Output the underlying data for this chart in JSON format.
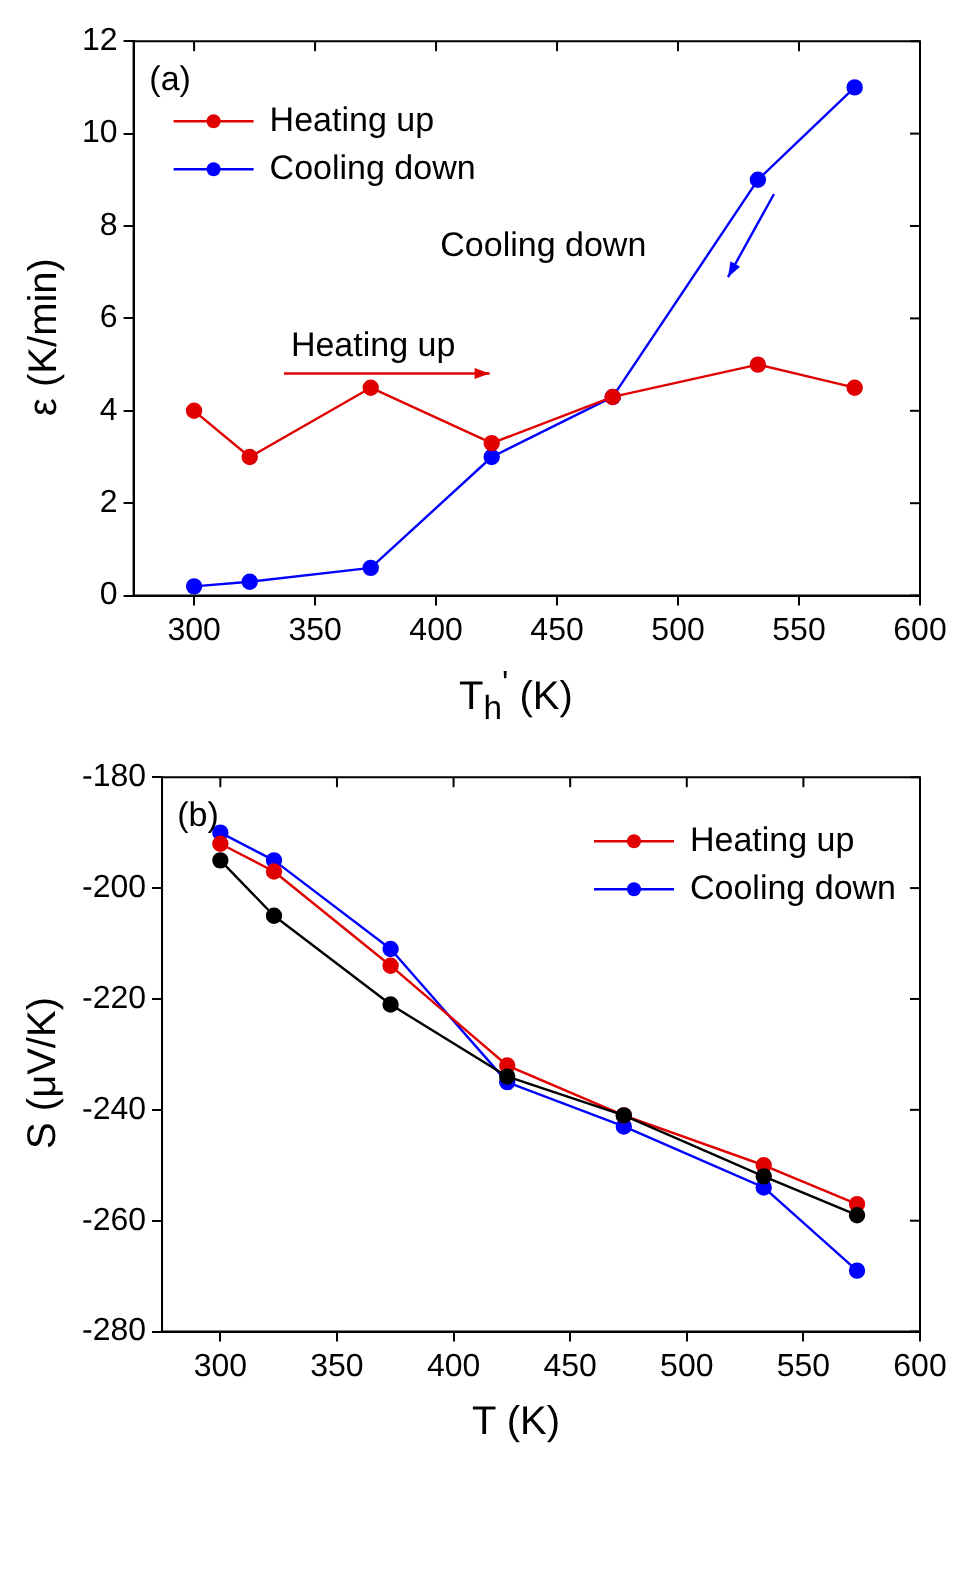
{
  "chart_data": [
    {
      "type": "line",
      "xlabel": "T$_{h}$$^{'}$ (K)",
      "ylabel": "ε (K/min)",
      "x": [
        300,
        323,
        373,
        423,
        473,
        533,
        573
      ],
      "series": [
        {
          "name": "Heating up",
          "color": "#e00000",
          "values": [
            4,
            3,
            4.5,
            3.3,
            4.3,
            5,
            4.5
          ]
        },
        {
          "name": "Cooling down",
          "color": "#0000ff",
          "values": [
            0.2,
            0.3,
            0.6,
            3,
            4.3,
            9,
            11
          ]
        }
      ],
      "xlim": [
        275,
        600
      ],
      "xticks": [
        300,
        350,
        400,
        450,
        500,
        550,
        600
      ],
      "ylim": [
        0,
        12
      ],
      "yticks": [
        0,
        2,
        4,
        6,
        8,
        10,
        12
      ],
      "annotations": [
        "(a)",
        "Heating up",
        "Cooling down"
      ],
      "grid": false,
      "legend": "top left",
      "marker": "circle",
      "line_style": "solid"
    },
    {
      "type": "line",
      "xlabel": "T (K)",
      "ylabel": "S (μV/K)",
      "x": [
        300,
        323,
        373,
        423,
        473,
        533,
        573
      ],
      "series": [
        {
          "color": "#000000",
          "values": [
            -195,
            -205,
            -221,
            -234,
            -241,
            -252,
            -259
          ]
        },
        {
          "name": "Heating up",
          "color": "#e00000",
          "values": [
            -192,
            -197,
            -214,
            -232,
            -241,
            -250,
            -257
          ]
        },
        {
          "name": "Cooling down",
          "color": "#0000ff",
          "values": [
            -190,
            -195,
            -211,
            -235,
            -243,
            -254,
            -269
          ]
        }
      ],
      "xlim": [
        275,
        600
      ],
      "xticks": [
        300,
        350,
        400,
        450,
        500,
        550,
        600
      ],
      "ylim": [
        -280,
        -180
      ],
      "yticks": [
        -280,
        -260,
        -240,
        -220,
        -200,
        -180
      ],
      "annotations": [
        "(b)"
      ],
      "grid": false,
      "legend": "top right",
      "marker": "circle",
      "line_style": "solid"
    }
  ]
}
